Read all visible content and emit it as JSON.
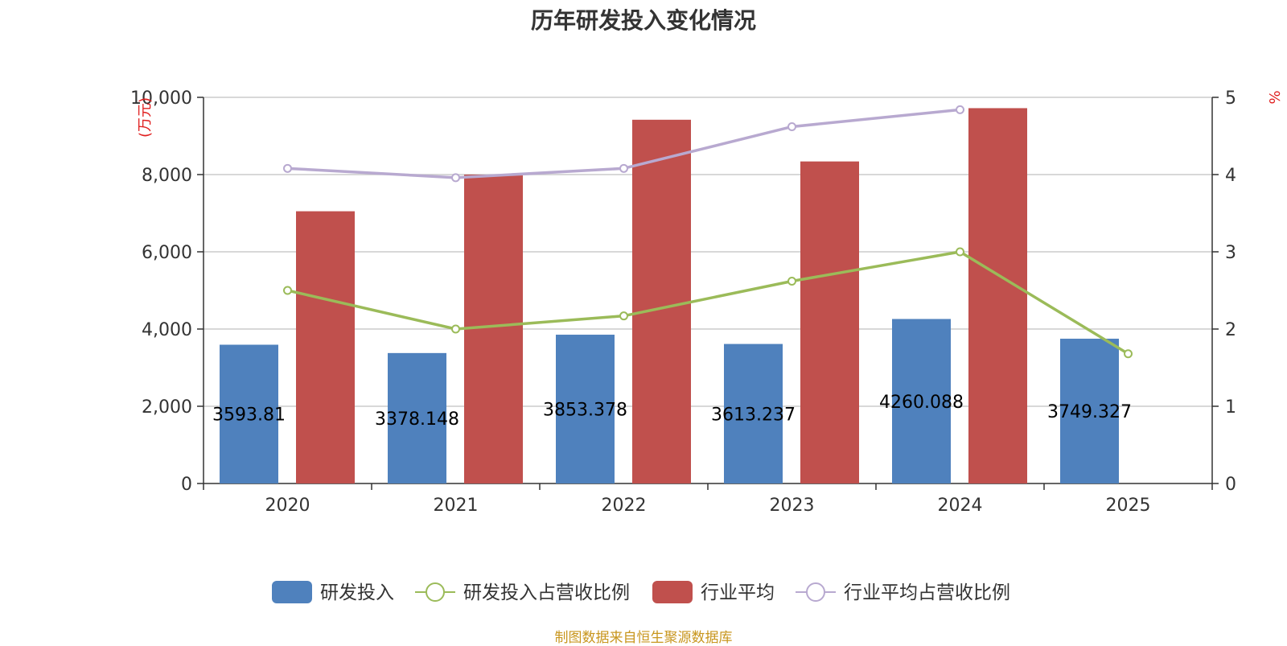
{
  "chart_data": {
    "type": "bar",
    "title": "历年研发投入变化情况",
    "categories": [
      "2020",
      "2021",
      "2022",
      "2023",
      "2024",
      "2025"
    ],
    "y_left": {
      "unit": "(万元)",
      "range": [
        0,
        10000
      ],
      "ticks": [
        "0",
        "2,000",
        "4,000",
        "6,000",
        "8,000",
        "10,000"
      ],
      "tick_values": [
        0,
        2000,
        4000,
        6000,
        8000,
        10000
      ]
    },
    "y_right": {
      "unit": "%",
      "range": [
        0,
        5
      ],
      "ticks": [
        "0",
        "1",
        "2",
        "3",
        "4",
        "5"
      ],
      "tick_values": [
        0,
        1,
        2,
        3,
        4,
        5
      ]
    },
    "grid": true,
    "legend_position": "bottom-center",
    "series": [
      {
        "name": "研发投入",
        "kind": "bar",
        "axis": "left",
        "color": "#4f81bd",
        "values": [
          3593.81,
          3378.148,
          3853.378,
          3613.237,
          4260.088,
          3749.327
        ],
        "labels": [
          "3593.81",
          "3378.148",
          "3853.378",
          "3613.237",
          "4260.088",
          "3749.327"
        ]
      },
      {
        "name": "研发投入占营收比例",
        "kind": "line",
        "axis": "right",
        "color": "#9bbb59",
        "values": [
          2.5,
          2.0,
          2.17,
          2.62,
          3.0,
          1.68
        ]
      },
      {
        "name": "行业平均",
        "kind": "bar",
        "axis": "left",
        "color": "#c0504d",
        "values": [
          7050,
          8000,
          9420,
          8340,
          9720,
          null
        ]
      },
      {
        "name": "行业平均占营收比例",
        "kind": "line",
        "axis": "right",
        "color": "#b8a9d0",
        "values": [
          4.08,
          3.96,
          4.08,
          4.62,
          4.84,
          null
        ]
      }
    ]
  },
  "source_note": "制图数据来自恒生聚源数据库"
}
